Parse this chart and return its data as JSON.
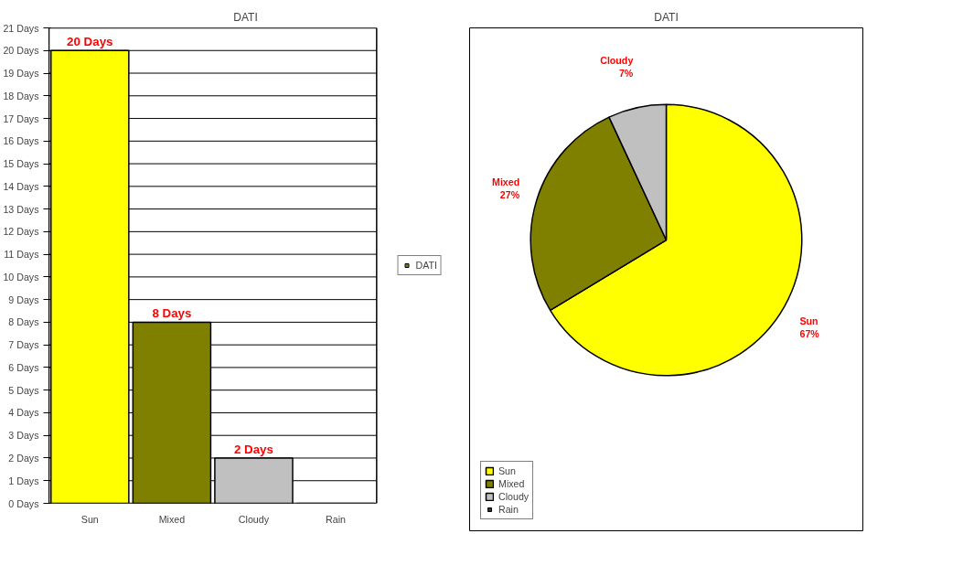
{
  "chart_data": [
    {
      "type": "bar",
      "title": "DATI",
      "categories": [
        "Sun",
        "Mixed",
        "Cloudy",
        "Rain"
      ],
      "series": [
        {
          "name": "DATI",
          "color": "#808000",
          "values": [
            20,
            8,
            2,
            0
          ],
          "colors": [
            "#ffff00",
            "#808000",
            "#c0c0c0",
            "#333333"
          ],
          "value_labels": [
            "20 Days",
            "8 Days",
            "2 Days",
            null
          ]
        }
      ],
      "ylim": [
        0,
        21
      ],
      "yticks": [
        {
          "value": 0,
          "label": "0 Days"
        },
        {
          "value": 1,
          "label": "1 Days"
        },
        {
          "value": 2,
          "label": "2 Days"
        },
        {
          "value": 3,
          "label": "3 Days"
        },
        {
          "value": 4,
          "label": "4 Days"
        },
        {
          "value": 5,
          "label": "5 Days"
        },
        {
          "value": 6,
          "label": "6 Days"
        },
        {
          "value": 7,
          "label": "7 Days"
        },
        {
          "value": 8,
          "label": "8 Days"
        },
        {
          "value": 9,
          "label": "9 Days"
        },
        {
          "value": 10,
          "label": "10 Days"
        },
        {
          "value": 11,
          "label": "11 Days"
        },
        {
          "value": 12,
          "label": "12 Days"
        },
        {
          "value": 13,
          "label": "13 Days"
        },
        {
          "value": 14,
          "label": "14 Days"
        },
        {
          "value": 15,
          "label": "15 Days"
        },
        {
          "value": 16,
          "label": "16 Days"
        },
        {
          "value": 17,
          "label": "17 Days"
        },
        {
          "value": 18,
          "label": "18 Days"
        },
        {
          "value": 19,
          "label": "19 Days"
        },
        {
          "value": 20,
          "label": "20 Days"
        },
        {
          "value": 21,
          "label": "21 Days"
        }
      ],
      "grid": "y",
      "legend": "right"
    },
    {
      "type": "pie",
      "title": "DATI",
      "categories": [
        "Sun",
        "Mixed",
        "Cloudy",
        "Rain"
      ],
      "values": [
        67,
        27,
        7,
        0
      ],
      "colors": [
        "#ffff00",
        "#808000",
        "#c0c0c0",
        "#333333"
      ],
      "value_labels": [
        "67%",
        "27%",
        "7%",
        null
      ],
      "legend": "bottom left"
    }
  ]
}
